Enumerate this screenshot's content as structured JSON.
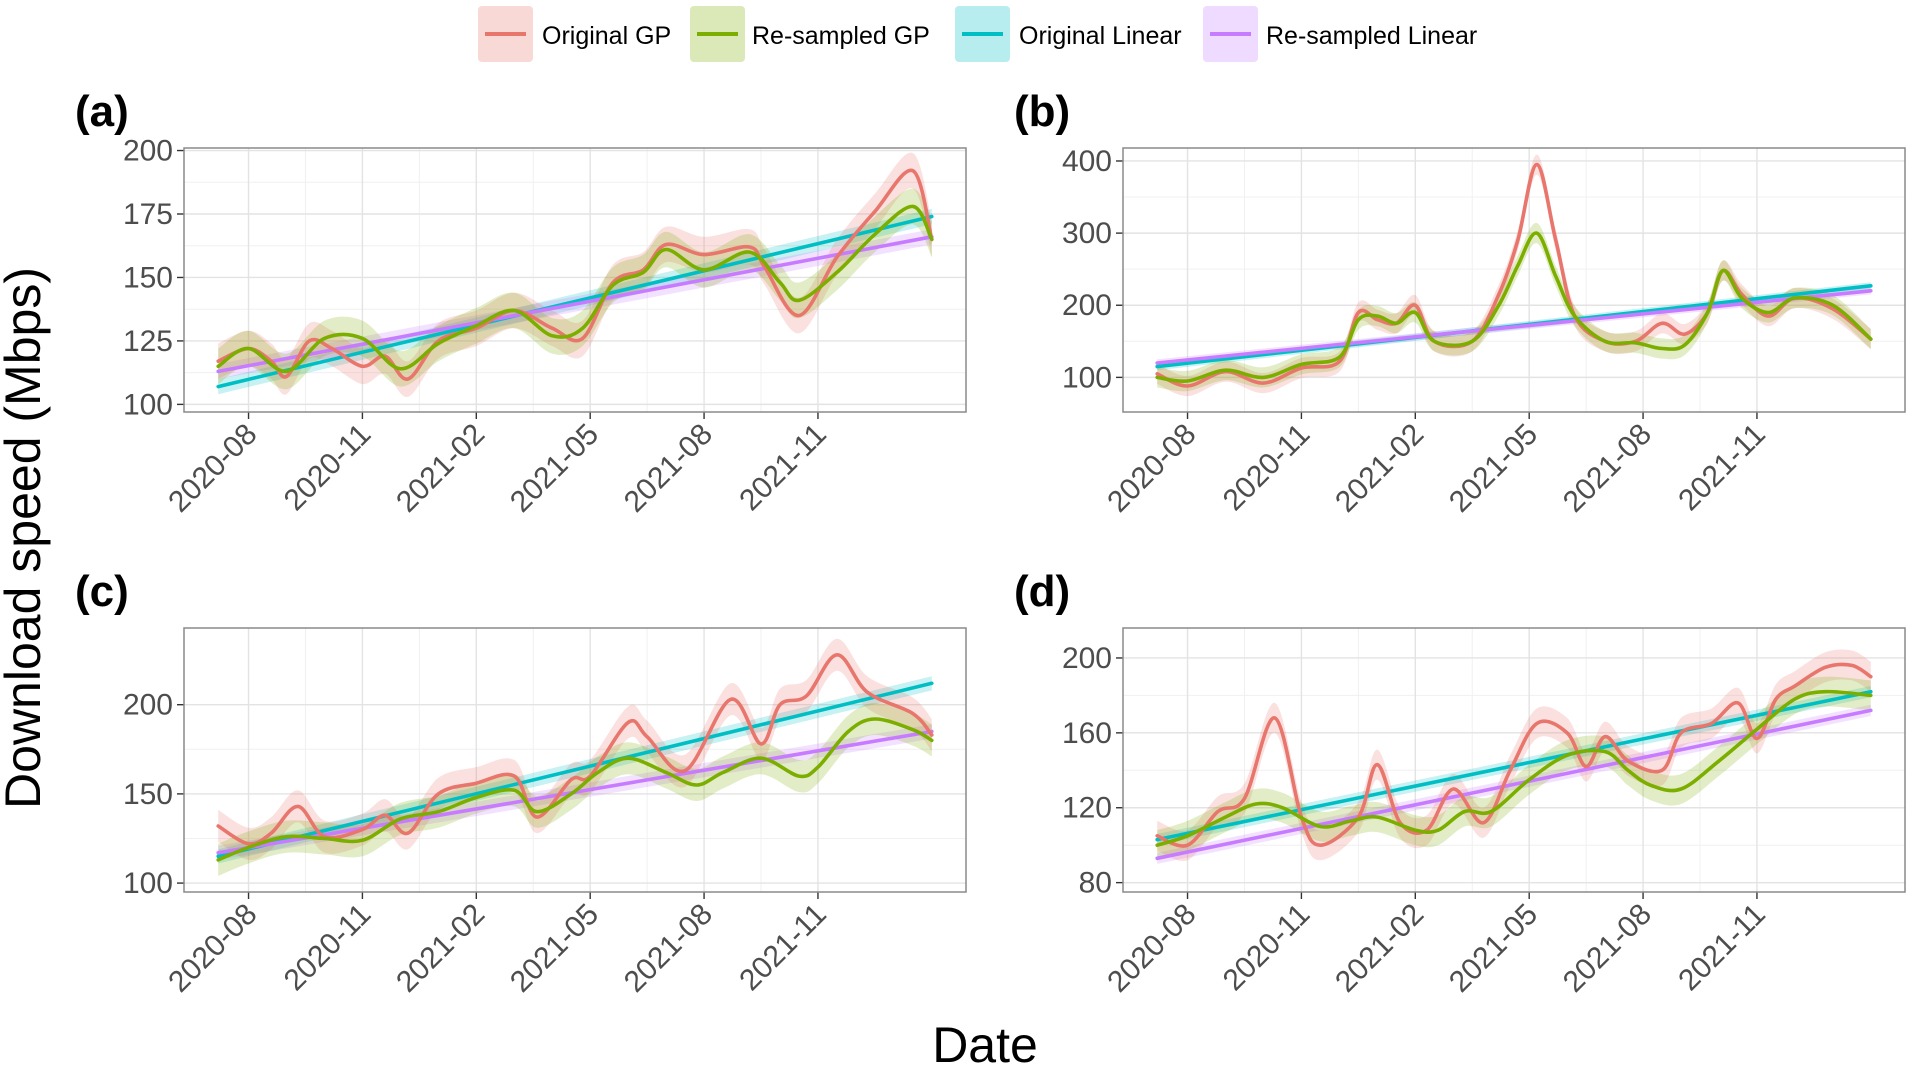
{
  "legend": {
    "items": [
      {
        "label": "Original GP",
        "color": "#E8766D"
      },
      {
        "label": "Re-sampled GP",
        "color": "#7CAE00"
      },
      {
        "label": "Original Linear",
        "color": "#00BFC4"
      },
      {
        "label": "Re-sampled Linear",
        "color": "#C77CFF"
      }
    ]
  },
  "axis_titles": {
    "x": "Date",
    "y": "Download speed (Mbps)"
  },
  "chart_data": [
    {
      "panel": "(a)",
      "type": "line",
      "x_ticks": [
        "2020-08",
        "2020-11",
        "2021-02",
        "2021-05",
        "2021-08",
        "2021-11"
      ],
      "y_ticks": [
        100,
        125,
        150,
        175,
        200
      ],
      "ylim": [
        97,
        201
      ],
      "series": [
        {
          "name": "Original GP",
          "band": 7,
          "points": [
            [
              6.2,
              117
            ],
            [
              7,
              122
            ],
            [
              7.6,
              117
            ],
            [
              8,
              111
            ],
            [
              8.6,
              125
            ],
            [
              9.2,
              122
            ],
            [
              10,
              115
            ],
            [
              10.6,
              119
            ],
            [
              11.2,
              110
            ],
            [
              12,
              125
            ],
            [
              13,
              130
            ],
            [
              14,
              137
            ],
            [
              15,
              130
            ],
            [
              15.8,
              126
            ],
            [
              16.6,
              148
            ],
            [
              17.4,
              153
            ],
            [
              18,
              163
            ],
            [
              19,
              159
            ],
            [
              20.2,
              162
            ],
            [
              20.6,
              154
            ],
            [
              21.5,
              135
            ],
            [
              22.5,
              158
            ],
            [
              23.5,
              176
            ],
            [
              24.5,
              192
            ],
            [
              25,
              165
            ]
          ]
        },
        {
          "name": "Re-sampled GP",
          "band": 7,
          "points": [
            [
              6.2,
              115
            ],
            [
              7,
              122
            ],
            [
              8,
              113
            ],
            [
              9,
              126
            ],
            [
              10,
              126
            ],
            [
              11,
              114
            ],
            [
              12,
              124
            ],
            [
              13,
              131
            ],
            [
              14,
              137
            ],
            [
              15,
              127
            ],
            [
              15.8,
              130
            ],
            [
              16.6,
              147
            ],
            [
              17.4,
              152
            ],
            [
              18,
              161
            ],
            [
              19,
              153
            ],
            [
              20.2,
              160
            ],
            [
              21,
              148
            ],
            [
              21.5,
              141
            ],
            [
              22.5,
              152
            ],
            [
              23.5,
              167
            ],
            [
              24.5,
              178
            ],
            [
              25,
              165
            ]
          ]
        },
        {
          "name": "Original Linear",
          "band": 3,
          "points": [
            [
              6.2,
              107
            ],
            [
              25,
              174
            ]
          ]
        },
        {
          "name": "Re-sampled Linear",
          "band": 3,
          "points": [
            [
              6.2,
              113
            ],
            [
              25,
              166
            ]
          ]
        }
      ]
    },
    {
      "panel": "(b)",
      "type": "line",
      "x_ticks": [
        "2020-08",
        "2020-11",
        "2021-02",
        "2021-05",
        "2021-08",
        "2021-11"
      ],
      "y_ticks": [
        100,
        200,
        300,
        400
      ],
      "ylim": [
        52,
        418
      ],
      "series": [
        {
          "name": "Original GP",
          "band": 14,
          "points": [
            [
              6.2,
              105
            ],
            [
              7,
              88
            ],
            [
              8,
              108
            ],
            [
              9,
              92
            ],
            [
              10,
              113
            ],
            [
              11,
              122
            ],
            [
              11.5,
              190
            ],
            [
              12,
              180
            ],
            [
              12.5,
              175
            ],
            [
              13,
              200
            ],
            [
              13.5,
              150
            ],
            [
              14.5,
              150
            ],
            [
              15.2,
              215
            ],
            [
              15.7,
              290
            ],
            [
              16.2,
              395
            ],
            [
              16.7,
              290
            ],
            [
              17.2,
              185
            ],
            [
              18,
              150
            ],
            [
              18.8,
              150
            ],
            [
              19.5,
              175
            ],
            [
              20.1,
              160
            ],
            [
              20.7,
              190
            ],
            [
              21.1,
              248
            ],
            [
              21.6,
              215
            ],
            [
              22.3,
              185
            ],
            [
              23,
              210
            ],
            [
              24,
              195
            ],
            [
              25,
              153
            ]
          ]
        },
        {
          "name": "Re-sampled GP",
          "band": 14,
          "points": [
            [
              6.2,
              100
            ],
            [
              7,
              95
            ],
            [
              8,
              110
            ],
            [
              9,
              100
            ],
            [
              10,
              118
            ],
            [
              11,
              128
            ],
            [
              11.5,
              180
            ],
            [
              12,
              185
            ],
            [
              12.5,
              175
            ],
            [
              13,
              190
            ],
            [
              13.5,
              150
            ],
            [
              14.5,
              150
            ],
            [
              15.2,
              200
            ],
            [
              15.7,
              255
            ],
            [
              16.2,
              300
            ],
            [
              16.7,
              240
            ],
            [
              17.2,
              185
            ],
            [
              18,
              150
            ],
            [
              18.8,
              148
            ],
            [
              19.5,
              140
            ],
            [
              20.1,
              145
            ],
            [
              20.7,
              190
            ],
            [
              21.1,
              248
            ],
            [
              21.6,
              210
            ],
            [
              22.3,
              190
            ],
            [
              23,
              210
            ],
            [
              24,
              200
            ],
            [
              25,
              153
            ]
          ]
        },
        {
          "name": "Original Linear",
          "band": 5,
          "points": [
            [
              6.2,
              115
            ],
            [
              25,
              227
            ]
          ]
        },
        {
          "name": "Re-sampled Linear",
          "band": 5,
          "points": [
            [
              6.2,
              120
            ],
            [
              25,
              220
            ]
          ]
        }
      ]
    },
    {
      "panel": "(c)",
      "type": "line",
      "x_ticks": [
        "2020-08",
        "2020-11",
        "2021-02",
        "2021-05",
        "2021-08",
        "2021-11"
      ],
      "y_ticks": [
        100,
        150,
        200
      ],
      "ylim": [
        95,
        243
      ],
      "series": [
        {
          "name": "Original GP",
          "band": 9,
          "points": [
            [
              6.2,
              132
            ],
            [
              7,
              122
            ],
            [
              7.6,
              128
            ],
            [
              8.3,
              143
            ],
            [
              9,
              126
            ],
            [
              10,
              130
            ],
            [
              10.6,
              138
            ],
            [
              11.2,
              128
            ],
            [
              12,
              150
            ],
            [
              13,
              156
            ],
            [
              14,
              160
            ],
            [
              14.6,
              137
            ],
            [
              15.5,
              158
            ],
            [
              16,
              160
            ],
            [
              17,
              190
            ],
            [
              17.5,
              182
            ],
            [
              18.5,
              163
            ],
            [
              19.7,
              203
            ],
            [
              20.5,
              178
            ],
            [
              21,
              200
            ],
            [
              21.7,
              205
            ],
            [
              22.5,
              228
            ],
            [
              23.3,
              207
            ],
            [
              24.5,
              195
            ],
            [
              25,
              183
            ]
          ]
        },
        {
          "name": "Re-sampled GP",
          "band": 9,
          "points": [
            [
              6.2,
              113
            ],
            [
              7,
              120
            ],
            [
              8,
              126
            ],
            [
              9,
              125
            ],
            [
              10,
              124
            ],
            [
              11,
              136
            ],
            [
              12,
              140
            ],
            [
              13,
              148
            ],
            [
              14,
              152
            ],
            [
              14.6,
              140
            ],
            [
              15.5,
              150
            ],
            [
              16.2,
              162
            ],
            [
              17,
              170
            ],
            [
              18,
              162
            ],
            [
              18.8,
              155
            ],
            [
              19.5,
              162
            ],
            [
              20.5,
              170
            ],
            [
              21.5,
              160
            ],
            [
              22,
              165
            ],
            [
              22.8,
              185
            ],
            [
              23.5,
              192
            ],
            [
              24.5,
              186
            ],
            [
              25,
              180
            ]
          ]
        },
        {
          "name": "Original Linear",
          "band": 4,
          "points": [
            [
              6.2,
              115
            ],
            [
              25,
              212
            ]
          ]
        },
        {
          "name": "Re-sampled Linear",
          "band": 4,
          "points": [
            [
              6.2,
              117
            ],
            [
              25,
              185
            ]
          ]
        }
      ]
    },
    {
      "panel": "(d)",
      "type": "line",
      "x_ticks": [
        "2020-08",
        "2020-11",
        "2021-02",
        "2021-05",
        "2021-08",
        "2021-11"
      ],
      "y_ticks": [
        80,
        120,
        160,
        200
      ],
      "ylim": [
        75,
        216
      ],
      "series": [
        {
          "name": "Original GP",
          "band": 8,
          "points": [
            [
              6.2,
              105
            ],
            [
              7,
              100
            ],
            [
              7.8,
              118
            ],
            [
              8.5,
              125
            ],
            [
              9.3,
              168
            ],
            [
              10,
              115
            ],
            [
              10.5,
              100
            ],
            [
              11.5,
              115
            ],
            [
              12,
              143
            ],
            [
              12.6,
              112
            ],
            [
              13.3,
              108
            ],
            [
              14,
              130
            ],
            [
              14.8,
              112
            ],
            [
              15.5,
              140
            ],
            [
              16.2,
              165
            ],
            [
              17,
              160
            ],
            [
              17.5,
              142
            ],
            [
              18,
              158
            ],
            [
              18.6,
              145
            ],
            [
              19.5,
              140
            ],
            [
              20,
              160
            ],
            [
              20.8,
              165
            ],
            [
              21.5,
              176
            ],
            [
              22,
              157
            ],
            [
              22.5,
              178
            ],
            [
              23,
              185
            ],
            [
              23.8,
              195
            ],
            [
              24.5,
              196
            ],
            [
              25,
              190
            ]
          ]
        },
        {
          "name": "Re-sampled GP",
          "band": 8,
          "points": [
            [
              6.2,
              100
            ],
            [
              7,
              105
            ],
            [
              8,
              115
            ],
            [
              8.8,
              122
            ],
            [
              9.5,
              120
            ],
            [
              10.5,
              110
            ],
            [
              11.3,
              113
            ],
            [
              12,
              115
            ],
            [
              13,
              108
            ],
            [
              13.6,
              108
            ],
            [
              14.3,
              118
            ],
            [
              15,
              118
            ],
            [
              16,
              135
            ],
            [
              17,
              148
            ],
            [
              18,
              150
            ],
            [
              18.6,
              140
            ],
            [
              19.2,
              132
            ],
            [
              20,
              130
            ],
            [
              21,
              145
            ],
            [
              22,
              162
            ],
            [
              23,
              178
            ],
            [
              23.8,
              182
            ],
            [
              25,
              180
            ]
          ]
        },
        {
          "name": "Original Linear",
          "band": 3,
          "points": [
            [
              6.2,
              103
            ],
            [
              25,
              182
            ]
          ]
        },
        {
          "name": "Re-sampled Linear",
          "band": 3,
          "points": [
            [
              6.2,
              93
            ],
            [
              25,
              172
            ]
          ]
        }
      ]
    }
  ]
}
